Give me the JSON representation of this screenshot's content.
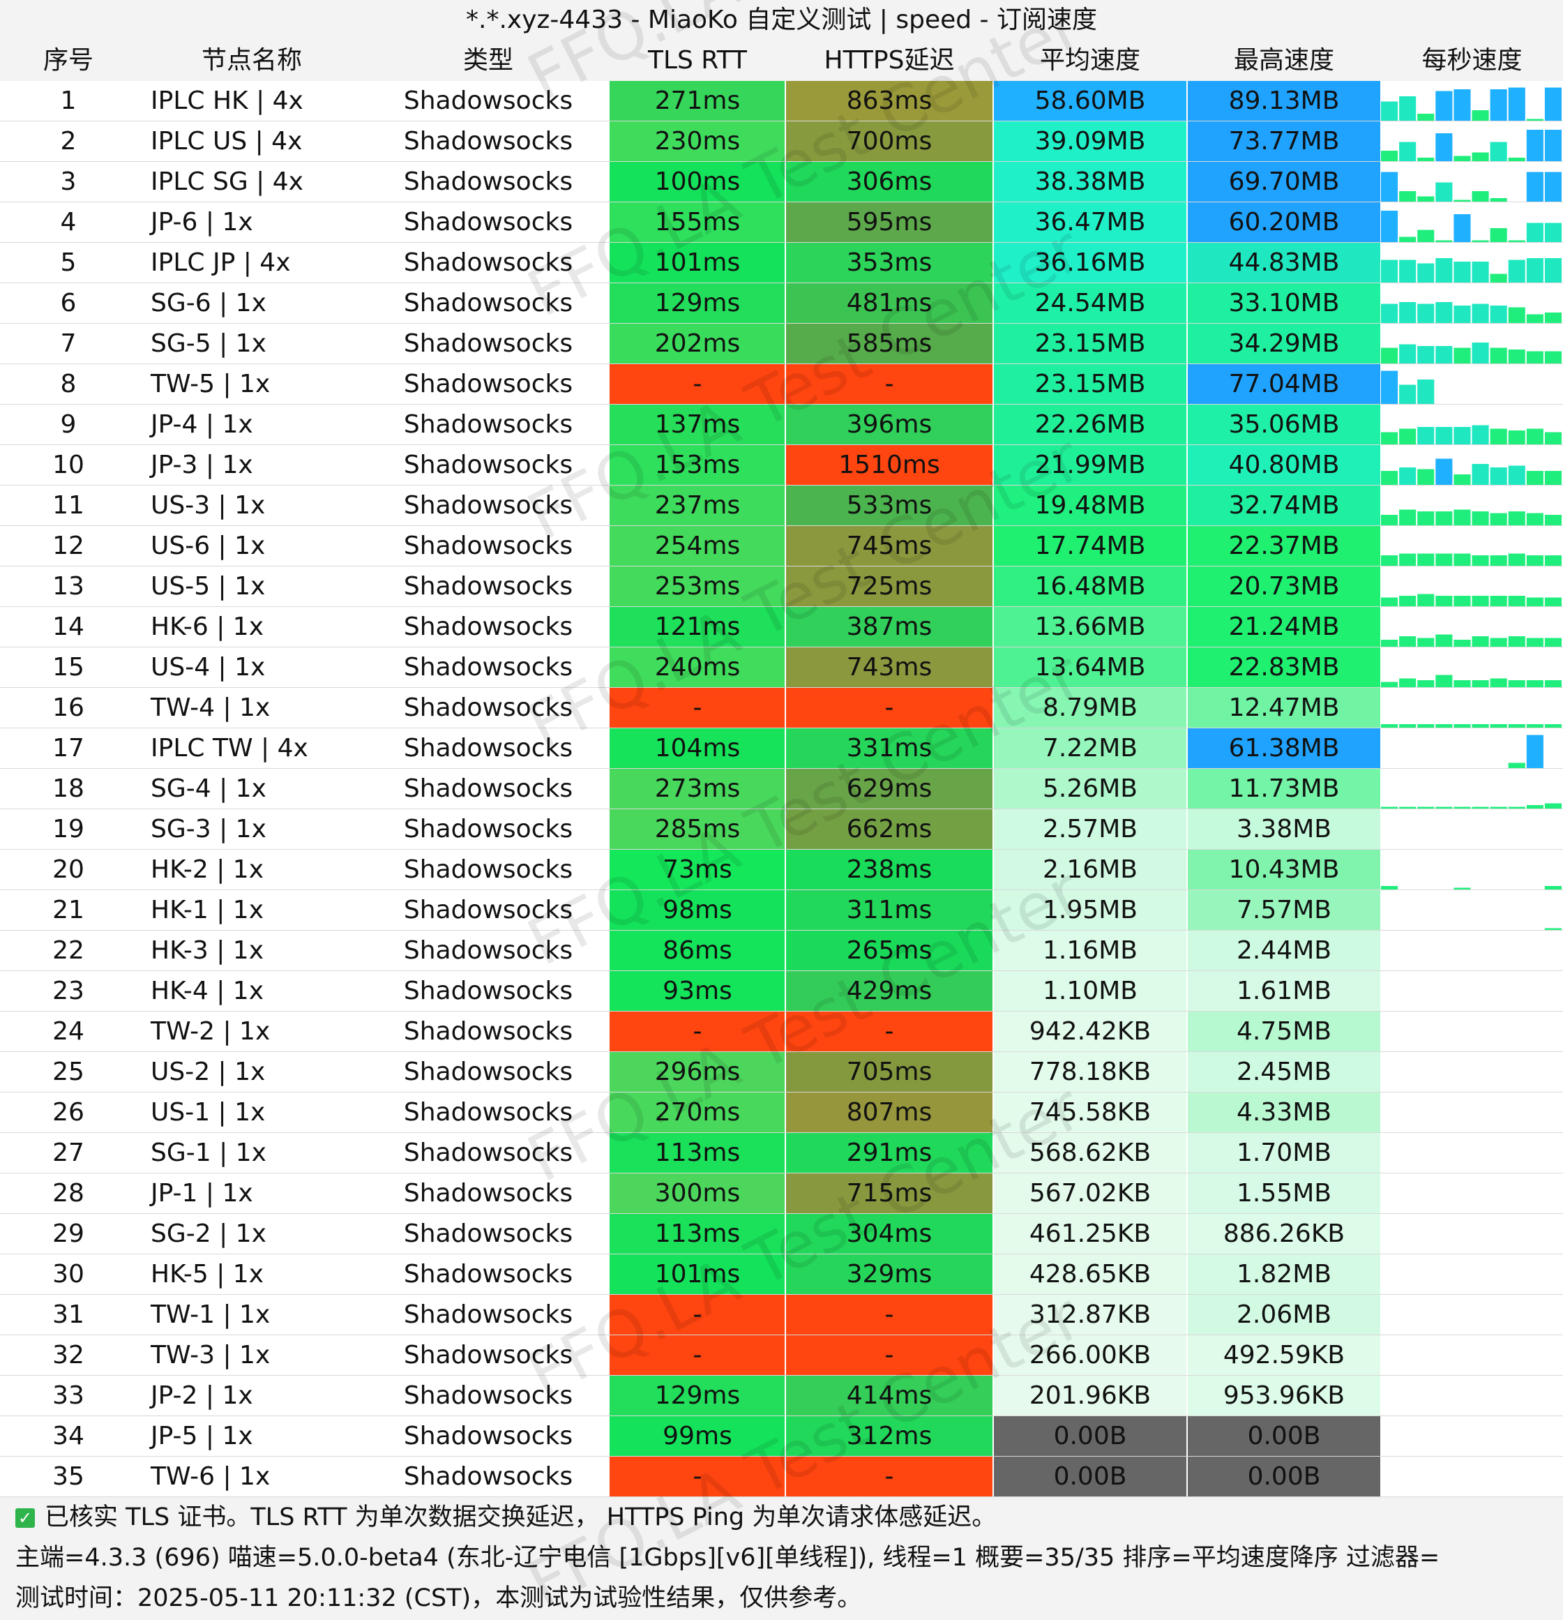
{
  "title": "*.*.xyz-4433 - MiaoKo 自定义测试 | speed - 订阅速度",
  "columns": [
    "序号",
    "节点名称",
    "类型",
    "TLS RTT",
    "HTTPS延迟",
    "平均速度",
    "最高速度",
    "每秒速度"
  ],
  "watermark": "FFQ.LA Test Center",
  "colors": {
    "header_bg": "#f3f3f3",
    "fail_red": "#ff4510",
    "no_speed_gray": "#666666",
    "latency_green": "#00e35a",
    "latency_olive": "#9a9a3a",
    "speed_blue": "#1fb0ff",
    "speed_light_green": "#ddfbea"
  },
  "rows": [
    {
      "idx": "1",
      "name": "IPLC HK | 4x",
      "type": "Shadowsocks",
      "tls": "271ms",
      "https": "863ms",
      "avg": "58.60MB",
      "max": "89.13MB",
      "tls_color": "#35d65a",
      "https_color": "#9a9a3a",
      "avg_color": "#1fb0ff",
      "max_color": "#1fa3ff",
      "spark": [
        0.55,
        0.7,
        0.2,
        0.85,
        0.9,
        0.3,
        0.9,
        0.95,
        0.05,
        0.95
      ]
    },
    {
      "idx": "2",
      "name": "IPLC US | 4x",
      "type": "Shadowsocks",
      "tls": "230ms",
      "https": "700ms",
      "avg": "39.09MB",
      "max": "73.77MB",
      "tls_color": "#3fdc5c",
      "https_color": "#879a3e",
      "avg_color": "#1ff0c8",
      "max_color": "#1fa3ff",
      "spark": [
        0.3,
        0.55,
        0.1,
        0.8,
        0.15,
        0.25,
        0.55,
        0.1,
        0.9,
        0.9
      ]
    },
    {
      "idx": "3",
      "name": "IPLC SG | 4x",
      "type": "Shadowsocks",
      "tls": "100ms",
      "https": "306ms",
      "avg": "38.38MB",
      "max": "69.70MB",
      "tls_color": "#14e25a",
      "https_color": "#20d85a",
      "avg_color": "#1ff0c8",
      "max_color": "#1fa3ff",
      "spark": [
        0.85,
        0.3,
        0.15,
        0.55,
        0.05,
        0.3,
        0.1,
        0.0,
        0.85,
        0.85
      ]
    },
    {
      "idx": "4",
      "name": "JP-6 | 1x",
      "type": "Shadowsocks",
      "tls": "155ms",
      "https": "595ms",
      "avg": "36.47MB",
      "max": "60.20MB",
      "tls_color": "#2ee05c",
      "https_color": "#5ca84a",
      "avg_color": "#1ff0c8",
      "max_color": "#1fa3ff",
      "spark": [
        0.9,
        0.15,
        0.35,
        0.05,
        0.8,
        0.05,
        0.4,
        0.05,
        0.55,
        0.55
      ]
    },
    {
      "idx": "5",
      "name": "IPLC JP | 4x",
      "type": "Shadowsocks",
      "tls": "101ms",
      "https": "353ms",
      "avg": "36.16MB",
      "max": "44.83MB",
      "tls_color": "#14e25a",
      "https_color": "#2cd45a",
      "avg_color": "#1ff0c8",
      "max_color": "#1fe8c0",
      "spark": [
        0.65,
        0.65,
        0.55,
        0.7,
        0.6,
        0.6,
        0.25,
        0.65,
        0.7,
        0.7
      ]
    },
    {
      "idx": "6",
      "name": "SG-6 | 1x",
      "type": "Shadowsocks",
      "tls": "129ms",
      "https": "481ms",
      "avg": "24.54MB",
      "max": "33.10MB",
      "tls_color": "#22de5a",
      "https_color": "#3cc452",
      "avg_color": "#1ff0a8",
      "max_color": "#1ff0a0",
      "spark": [
        0.55,
        0.6,
        0.55,
        0.6,
        0.5,
        0.55,
        0.5,
        0.45,
        0.25,
        0.3
      ]
    },
    {
      "idx": "7",
      "name": "SG-5 | 1x",
      "type": "Shadowsocks",
      "tls": "202ms",
      "https": "585ms",
      "avg": "23.15MB",
      "max": "34.29MB",
      "tls_color": "#3adc5c",
      "https_color": "#56ab4a",
      "avg_color": "#1ff0a0",
      "max_color": "#1ff0a0",
      "spark": [
        0.45,
        0.55,
        0.5,
        0.5,
        0.45,
        0.6,
        0.45,
        0.4,
        0.35,
        0.35
      ]
    },
    {
      "idx": "8",
      "name": "TW-5 | 1x",
      "type": "Shadowsocks",
      "tls": "-",
      "https": "-",
      "avg": "23.15MB",
      "max": "77.04MB",
      "tls_color": "#ff4510",
      "https_color": "#ff4510",
      "avg_color": "#1ff0a0",
      "max_color": "#1fa3ff",
      "spark": [
        0.95,
        0.55,
        0.7,
        0.0,
        0.0,
        0.0,
        0.0,
        0.0,
        0.0,
        0.0
      ]
    },
    {
      "idx": "9",
      "name": "JP-4 | 1x",
      "type": "Shadowsocks",
      "tls": "137ms",
      "https": "396ms",
      "avg": "22.26MB",
      "max": "35.06MB",
      "tls_color": "#26de5a",
      "https_color": "#30d05a",
      "avg_color": "#1ff098",
      "max_color": "#1ff0a8",
      "spark": [
        0.35,
        0.45,
        0.5,
        0.5,
        0.5,
        0.55,
        0.45,
        0.4,
        0.45,
        0.35
      ]
    },
    {
      "idx": "10",
      "name": "JP-3 | 1x",
      "type": "Shadowsocks",
      "tls": "153ms",
      "https": "1510ms",
      "avg": "21.99MB",
      "max": "40.80MB",
      "tls_color": "#2ee05c",
      "https_color": "#ff4510",
      "avg_color": "#1ff098",
      "max_color": "#1ff0b8",
      "spark": [
        0.4,
        0.5,
        0.45,
        0.75,
        0.3,
        0.6,
        0.5,
        0.55,
        0.4,
        0.4
      ]
    },
    {
      "idx": "11",
      "name": "US-3 | 1x",
      "type": "Shadowsocks",
      "tls": "237ms",
      "https": "533ms",
      "avg": "19.48MB",
      "max": "32.74MB",
      "tls_color": "#3edc5c",
      "https_color": "#4cb44e",
      "avg_color": "#1ff080",
      "max_color": "#1ff0a0",
      "spark": [
        0.3,
        0.45,
        0.4,
        0.4,
        0.45,
        0.4,
        0.35,
        0.4,
        0.35,
        0.3
      ]
    },
    {
      "idx": "12",
      "name": "US-6 | 1x",
      "type": "Shadowsocks",
      "tls": "254ms",
      "https": "745ms",
      "avg": "17.74MB",
      "max": "22.37MB",
      "tls_color": "#44da5c",
      "https_color": "#8c983e",
      "avg_color": "#1ff070",
      "max_color": "#1ff070",
      "spark": [
        0.3,
        0.35,
        0.35,
        0.35,
        0.35,
        0.3,
        0.3,
        0.35,
        0.3,
        0.3
      ]
    },
    {
      "idx": "13",
      "name": "US-5 | 1x",
      "type": "Shadowsocks",
      "tls": "253ms",
      "https": "725ms",
      "avg": "16.48MB",
      "max": "20.73MB",
      "tls_color": "#44da5c",
      "https_color": "#8a993e",
      "avg_color": "#2ff080",
      "max_color": "#1ff070",
      "spark": [
        0.25,
        0.3,
        0.35,
        0.3,
        0.3,
        0.3,
        0.3,
        0.3,
        0.25,
        0.25
      ]
    },
    {
      "idx": "14",
      "name": "HK-6 | 1x",
      "type": "Shadowsocks",
      "tls": "121ms",
      "https": "387ms",
      "avg": "13.66MB",
      "max": "21.24MB",
      "tls_color": "#1ee05a",
      "https_color": "#30d05a",
      "avg_color": "#4ef292",
      "max_color": "#1ff070",
      "spark": [
        0.2,
        0.3,
        0.25,
        0.35,
        0.2,
        0.3,
        0.25,
        0.3,
        0.25,
        0.25
      ]
    },
    {
      "idx": "15",
      "name": "US-4 | 1x",
      "type": "Shadowsocks",
      "tls": "240ms",
      "https": "743ms",
      "avg": "13.64MB",
      "max": "22.83MB",
      "tls_color": "#40dc5c",
      "https_color": "#8c983e",
      "avg_color": "#4ef292",
      "max_color": "#1ff070",
      "spark": [
        0.15,
        0.25,
        0.2,
        0.35,
        0.2,
        0.2,
        0.25,
        0.2,
        0.2,
        0.2
      ]
    },
    {
      "idx": "16",
      "name": "TW-4 | 1x",
      "type": "Shadowsocks",
      "tls": "-",
      "https": "-",
      "avg": "8.79MB",
      "max": "12.47MB",
      "tls_color": "#ff4510",
      "https_color": "#ff4510",
      "avg_color": "#86f6b2",
      "max_color": "#70f4a4",
      "spark": [
        0.1,
        0.1,
        0.1,
        0.1,
        0.1,
        0.1,
        0.1,
        0.1,
        0.1,
        0.1
      ]
    },
    {
      "idx": "17",
      "name": "IPLC TW | 4x",
      "type": "Shadowsocks",
      "tls": "104ms",
      "https": "331ms",
      "avg": "7.22MB",
      "max": "61.38MB",
      "tls_color": "#16e25a",
      "https_color": "#26d65a",
      "avg_color": "#96f6bc",
      "max_color": "#1fa3ff",
      "spark": [
        0.0,
        0.0,
        0.0,
        0.0,
        0.0,
        0.0,
        0.0,
        0.15,
        0.95,
        0.0
      ]
    },
    {
      "idx": "18",
      "name": "SG-4 | 1x",
      "type": "Shadowsocks",
      "tls": "273ms",
      "https": "629ms",
      "avg": "5.26MB",
      "max": "11.73MB",
      "tls_color": "#48d85c",
      "https_color": "#68a448",
      "avg_color": "#aef8cc",
      "max_color": "#74f4a6",
      "spark": [
        0.05,
        0.05,
        0.05,
        0.05,
        0.05,
        0.05,
        0.05,
        0.05,
        0.1,
        0.15
      ]
    },
    {
      "idx": "19",
      "name": "SG-3 | 1x",
      "type": "Shadowsocks",
      "tls": "285ms",
      "https": "662ms",
      "avg": "2.57MB",
      "max": "3.38MB",
      "tls_color": "#4ad85c",
      "https_color": "#74a044",
      "avg_color": "#cdfae0",
      "max_color": "#c6fadc",
      "spark": [
        0.0,
        0.0,
        0.0,
        0.0,
        0.0,
        0.0,
        0.0,
        0.0,
        0.0,
        0.0
      ]
    },
    {
      "idx": "20",
      "name": "HK-2 | 1x",
      "type": "Shadowsocks",
      "tls": "73ms",
      "https": "238ms",
      "avg": "2.16MB",
      "max": "10.43MB",
      "tls_color": "#14e85a",
      "https_color": "#18dc5a",
      "avg_color": "#d2fae3",
      "max_color": "#80f4ac",
      "spark": [
        0.1,
        0.0,
        0.0,
        0.0,
        0.05,
        0.0,
        0.0,
        0.0,
        0.0,
        0.1
      ]
    },
    {
      "idx": "21",
      "name": "HK-1 | 1x",
      "type": "Shadowsocks",
      "tls": "98ms",
      "https": "311ms",
      "avg": "1.95MB",
      "max": "7.57MB",
      "tls_color": "#14e25a",
      "https_color": "#22d85a",
      "avg_color": "#d4fae4",
      "max_color": "#98f6bc",
      "spark": [
        0.0,
        0.0,
        0.0,
        0.0,
        0.0,
        0.0,
        0.0,
        0.0,
        0.0,
        0.05
      ]
    },
    {
      "idx": "22",
      "name": "HK-3 | 1x",
      "type": "Shadowsocks",
      "tls": "86ms",
      "https": "265ms",
      "avg": "1.16MB",
      "max": "2.44MB",
      "tls_color": "#14e45a",
      "https_color": "#1ada5a",
      "avg_color": "#dcfbe8",
      "max_color": "#cefae1",
      "spark": [
        0.0,
        0.0,
        0.0,
        0.0,
        0.0,
        0.0,
        0.0,
        0.0,
        0.0,
        0.0
      ]
    },
    {
      "idx": "23",
      "name": "HK-4 | 1x",
      "type": "Shadowsocks",
      "tls": "93ms",
      "https": "429ms",
      "avg": "1.10MB",
      "max": "1.61MB",
      "tls_color": "#14e45a",
      "https_color": "#34cc58",
      "avg_color": "#dcfbe8",
      "max_color": "#d6fae6",
      "spark": [
        0.0,
        0.0,
        0.0,
        0.0,
        0.0,
        0.0,
        0.0,
        0.0,
        0.0,
        0.0
      ]
    },
    {
      "idx": "24",
      "name": "TW-2 | 1x",
      "type": "Shadowsocks",
      "tls": "-",
      "https": "-",
      "avg": "942.42KB",
      "max": "4.75MB",
      "tls_color": "#ff4510",
      "https_color": "#ff4510",
      "avg_color": "#e2fbeb",
      "max_color": "#b6f8d0",
      "spark": [
        0.0,
        0.0,
        0.0,
        0.0,
        0.0,
        0.0,
        0.0,
        0.0,
        0.0,
        0.0
      ]
    },
    {
      "idx": "25",
      "name": "US-2 | 1x",
      "type": "Shadowsocks",
      "tls": "296ms",
      "https": "705ms",
      "avg": "778.18KB",
      "max": "2.45MB",
      "tls_color": "#4cd65c",
      "https_color": "#84983e",
      "avg_color": "#e2fbeb",
      "max_color": "#cefae1",
      "spark": [
        0.0,
        0.0,
        0.0,
        0.0,
        0.0,
        0.0,
        0.0,
        0.0,
        0.0,
        0.0
      ]
    },
    {
      "idx": "26",
      "name": "US-1 | 1x",
      "type": "Shadowsocks",
      "tls": "270ms",
      "https": "807ms",
      "avg": "745.58KB",
      "max": "4.33MB",
      "tls_color": "#48d85c",
      "https_color": "#96963c",
      "avg_color": "#e2fbeb",
      "max_color": "#baf8d2",
      "spark": [
        0.0,
        0.0,
        0.0,
        0.0,
        0.0,
        0.0,
        0.0,
        0.0,
        0.0,
        0.0
      ]
    },
    {
      "idx": "27",
      "name": "SG-1 | 1x",
      "type": "Shadowsocks",
      "tls": "113ms",
      "https": "291ms",
      "avg": "568.62KB",
      "max": "1.70MB",
      "tls_color": "#1ae05a",
      "https_color": "#20d85a",
      "avg_color": "#e4fbec",
      "max_color": "#d6fae6",
      "spark": [
        0.0,
        0.0,
        0.0,
        0.0,
        0.0,
        0.0,
        0.0,
        0.0,
        0.0,
        0.0
      ]
    },
    {
      "idx": "28",
      "name": "JP-1 | 1x",
      "type": "Shadowsocks",
      "tls": "300ms",
      "https": "715ms",
      "avg": "567.02KB",
      "max": "1.55MB",
      "tls_color": "#4cd65c",
      "https_color": "#88983e",
      "avg_color": "#e4fbec",
      "max_color": "#d6fae6",
      "spark": [
        0.0,
        0.0,
        0.0,
        0.0,
        0.0,
        0.0,
        0.0,
        0.0,
        0.0,
        0.0
      ]
    },
    {
      "idx": "29",
      "name": "SG-2 | 1x",
      "type": "Shadowsocks",
      "tls": "113ms",
      "https": "304ms",
      "avg": "461.25KB",
      "max": "886.26KB",
      "tls_color": "#1ae05a",
      "https_color": "#22d85a",
      "avg_color": "#e4fbec",
      "max_color": "#dcfbe8",
      "spark": [
        0.0,
        0.0,
        0.0,
        0.0,
        0.0,
        0.0,
        0.0,
        0.0,
        0.0,
        0.0
      ]
    },
    {
      "idx": "30",
      "name": "HK-5 | 1x",
      "type": "Shadowsocks",
      "tls": "101ms",
      "https": "329ms",
      "avg": "428.65KB",
      "max": "1.82MB",
      "tls_color": "#14e25a",
      "https_color": "#26d65a",
      "avg_color": "#e4fbec",
      "max_color": "#d4fae4",
      "spark": [
        0.0,
        0.0,
        0.0,
        0.0,
        0.0,
        0.0,
        0.0,
        0.0,
        0.0,
        0.0
      ]
    },
    {
      "idx": "31",
      "name": "TW-1 | 1x",
      "type": "Shadowsocks",
      "tls": "-",
      "https": "-",
      "avg": "312.87KB",
      "max": "2.06MB",
      "tls_color": "#ff4510",
      "https_color": "#ff4510",
      "avg_color": "#e6fbed",
      "max_color": "#d2fae3",
      "spark": [
        0.0,
        0.0,
        0.0,
        0.0,
        0.0,
        0.0,
        0.0,
        0.0,
        0.0,
        0.0
      ]
    },
    {
      "idx": "32",
      "name": "TW-3 | 1x",
      "type": "Shadowsocks",
      "tls": "-",
      "https": "-",
      "avg": "266.00KB",
      "max": "492.59KB",
      "tls_color": "#ff4510",
      "https_color": "#ff4510",
      "avg_color": "#e6fbed",
      "max_color": "#e0fbe9",
      "spark": [
        0.0,
        0.0,
        0.0,
        0.0,
        0.0,
        0.0,
        0.0,
        0.0,
        0.0,
        0.0
      ]
    },
    {
      "idx": "33",
      "name": "JP-2 | 1x",
      "type": "Shadowsocks",
      "tls": "129ms",
      "https": "414ms",
      "avg": "201.96KB",
      "max": "953.96KB",
      "tls_color": "#22de5a",
      "https_color": "#34ce58",
      "avg_color": "#e6fbed",
      "max_color": "#dcfbe8",
      "spark": [
        0.0,
        0.0,
        0.0,
        0.0,
        0.0,
        0.0,
        0.0,
        0.0,
        0.0,
        0.0
      ]
    },
    {
      "idx": "34",
      "name": "JP-5 | 1x",
      "type": "Shadowsocks",
      "tls": "99ms",
      "https": "312ms",
      "avg": "0.00B",
      "max": "0.00B",
      "tls_color": "#14e25a",
      "https_color": "#22d85a",
      "avg_color": "#666666",
      "max_color": "#666666",
      "spark": [
        0.0,
        0.0,
        0.0,
        0.0,
        0.0,
        0.0,
        0.0,
        0.0,
        0.0,
        0.0
      ]
    },
    {
      "idx": "35",
      "name": "TW-6 | 1x",
      "type": "Shadowsocks",
      "tls": "-",
      "https": "-",
      "avg": "0.00B",
      "max": "0.00B",
      "tls_color": "#ff4510",
      "https_color": "#ff4510",
      "avg_color": "#666666",
      "max_color": "#666666",
      "spark": [
        0.0,
        0.0,
        0.0,
        0.0,
        0.0,
        0.0,
        0.0,
        0.0,
        0.0,
        0.0
      ]
    }
  ],
  "footer": {
    "line1": "已核实 TLS 证书。TLS RTT 为单次数据交换延迟， HTTPS Ping 为单次请求体感延迟。",
    "line2": "主端=4.3.3 (696) 喵速=5.0.0-beta4 (东北-辽宁电信 [1Gbps][v6][单线程]), 线程=1 概要=35/35 排序=平均速度降序 过滤器=",
    "line3": "测试时间：2025-05-11 20:11:32 (CST)，本测试为试验性结果，仅供参考。"
  }
}
